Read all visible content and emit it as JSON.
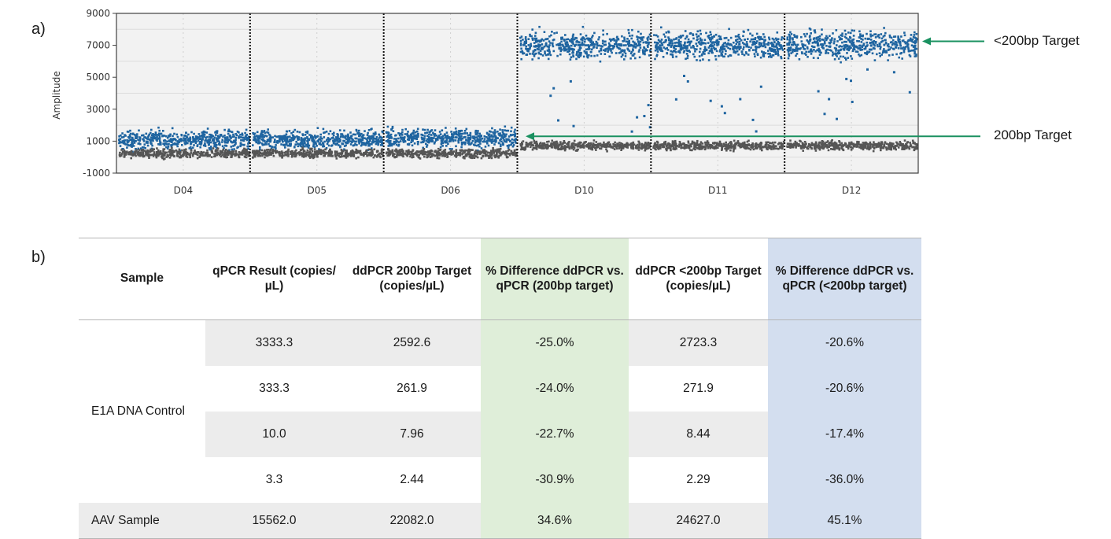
{
  "panel_labels": {
    "a": "a)",
    "b": "b)"
  },
  "chart_data": {
    "type": "scatter",
    "title": "",
    "xlabel": "",
    "ylabel": "Amplitude",
    "ylim": [
      -1000,
      9000
    ],
    "yticks": [
      9000,
      7000,
      5000,
      3000,
      1000,
      -1000
    ],
    "categories": [
      "D04",
      "D05",
      "D06",
      "D10",
      "D11",
      "D12"
    ],
    "grid": true,
    "series": [
      {
        "color": "#1e64a0",
        "bands": [
          {
            "well": "D04",
            "center": 1150
          },
          {
            "well": "D05",
            "center": 1180
          },
          {
            "well": "D06",
            "center": 1250
          },
          {
            "well": "D10",
            "center": 7050
          },
          {
            "well": "D11",
            "center": 7100
          },
          {
            "well": "D12",
            "center": 7080
          }
        ]
      },
      {
        "color": "#555555",
        "bands": [
          {
            "well": "D04",
            "center": 300
          },
          {
            "well": "D05",
            "center": 300
          },
          {
            "well": "D06",
            "center": 300
          },
          {
            "well": "D10",
            "center": 780
          },
          {
            "well": "D11",
            "center": 780
          },
          {
            "well": "D12",
            "center": 780
          }
        ]
      }
    ],
    "annotations": [
      {
        "text": "<200bp Target",
        "y": 7250
      },
      {
        "text": "200bp Target",
        "y": 1300
      }
    ]
  },
  "table": {
    "headers": [
      "Sample",
      "qPCR Result (copies/µL)",
      "ddPCR 200bp Target (copies/µL)",
      "% Difference ddPCR vs. qPCR (200bp target)",
      "ddPCR <200bp Target (copies/µL)",
      "% Difference ddPCR vs. qPCR (<200bp target)"
    ],
    "groups": [
      {
        "sample": "E1A DNA Control",
        "rows": [
          [
            "3333.3",
            "2592.6",
            "-25.0%",
            "2723.3",
            "-20.6%"
          ],
          [
            "333.3",
            "261.9",
            "-24.0%",
            "271.9",
            "-20.6%"
          ],
          [
            "10.0",
            "7.96",
            "-22.7%",
            "8.44",
            "-17.4%"
          ],
          [
            "3.3",
            "2.44",
            "-30.9%",
            "2.29",
            "-36.0%"
          ]
        ]
      },
      {
        "sample": "AAV Sample",
        "rows": [
          [
            "15562.0",
            "22082.0",
            "34.6%",
            "24627.0",
            "45.1%"
          ]
        ]
      }
    ]
  },
  "colors": {
    "green_column": "#dfeed9",
    "blue_column": "#d3deef",
    "row_shade": "#ececec",
    "arrow": "#1a9160"
  }
}
